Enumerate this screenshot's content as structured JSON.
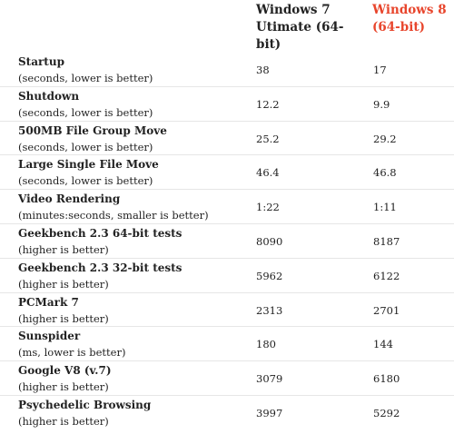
{
  "header": {
    "win7": "Windows 7 Utimate (64-bit)",
    "win8": "Windows 8 (64-bit)",
    "win8_color": "#e8452c"
  },
  "rows": [
    {
      "name": "Startup",
      "note": "(seconds, lower is better)",
      "win7": "38",
      "win8": "17"
    },
    {
      "name": "Shutdown",
      "note": "(seconds, lower is better)",
      "win7": "12.2",
      "win8": "9.9"
    },
    {
      "name": "500MB File Group Move",
      "note": "(seconds, lower is better)",
      "win7": "25.2",
      "win8": "29.2"
    },
    {
      "name": "Large Single File Move",
      "note": "(seconds, lower is better)",
      "win7": "46.4",
      "win8": "46.8"
    },
    {
      "name": "Video Rendering",
      "note": "(minutes:seconds, smaller is better)",
      "win7": "1:22",
      "win8": "1:11"
    },
    {
      "name": "Geekbench 2.3 64-bit tests",
      "note": "(higher is better)",
      "win7": "8090",
      "win8": "8187"
    },
    {
      "name": "Geekbench 2.3 32-bit tests",
      "note": "(higher is better)",
      "win7": "5962",
      "win8": "6122"
    },
    {
      "name": "PCMark 7",
      "note": "(higher is better)",
      "win7": "2313",
      "win8": "2701"
    },
    {
      "name": "Sunspider",
      "note": "(ms, lower is better)",
      "win7": "180",
      "win8": "144"
    },
    {
      "name": "Google V8 (v.7)",
      "note": "(higher is better)",
      "win7": "3079",
      "win8": "6180"
    },
    {
      "name": "Psychedelic Browsing",
      "note": "(higher is better)",
      "win7": "3997",
      "win8": "5292"
    }
  ]
}
